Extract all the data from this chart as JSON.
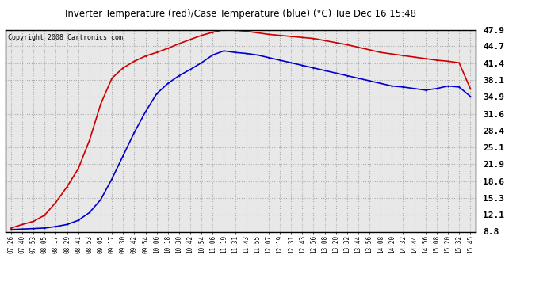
{
  "title": "Inverter Temperature (red)/Case Temperature (blue) (°C) Tue Dec 16 15:48",
  "copyright": "Copyright 2008 Cartronics.com",
  "background_color": "#ffffff",
  "plot_bg_color": "#e8e8e8",
  "grid_color": "#aaaaaa",
  "yticks": [
    8.8,
    12.1,
    15.3,
    18.6,
    21.9,
    25.1,
    28.4,
    31.6,
    34.9,
    38.1,
    41.4,
    44.7,
    47.9
  ],
  "ylim": [
    8.8,
    47.9
  ],
  "xtick_labels": [
    "07:26",
    "07:40",
    "07:53",
    "08:05",
    "08:17",
    "08:29",
    "08:41",
    "08:53",
    "09:05",
    "09:17",
    "09:30",
    "09:42",
    "09:54",
    "10:06",
    "10:18",
    "10:30",
    "10:42",
    "10:54",
    "11:06",
    "11:19",
    "11:31",
    "11:43",
    "11:55",
    "12:07",
    "12:19",
    "12:31",
    "12:43",
    "12:56",
    "13:08",
    "13:20",
    "13:32",
    "13:44",
    "13:56",
    "14:08",
    "14:20",
    "14:32",
    "14:44",
    "14:56",
    "15:08",
    "15:20",
    "15:32",
    "15:45"
  ],
  "red_data": [
    9.5,
    10.2,
    10.8,
    12.0,
    14.5,
    17.5,
    21.0,
    26.5,
    33.5,
    38.5,
    40.5,
    41.8,
    42.8,
    43.5,
    44.3,
    45.2,
    46.0,
    46.8,
    47.4,
    47.9,
    47.8,
    47.6,
    47.3,
    47.0,
    46.8,
    46.6,
    46.4,
    46.2,
    45.8,
    45.4,
    45.0,
    44.5,
    44.0,
    43.5,
    43.2,
    42.9,
    42.6,
    42.3,
    42.0,
    41.8,
    41.5,
    36.5
  ],
  "blue_data": [
    9.2,
    9.3,
    9.4,
    9.5,
    9.8,
    10.2,
    11.0,
    12.5,
    15.0,
    19.0,
    23.5,
    28.0,
    32.0,
    35.5,
    37.5,
    39.0,
    40.2,
    41.5,
    43.0,
    43.8,
    43.5,
    43.3,
    43.0,
    42.5,
    42.0,
    41.5,
    41.0,
    40.5,
    40.0,
    39.5,
    39.0,
    38.5,
    38.0,
    37.5,
    37.0,
    36.8,
    36.5,
    36.2,
    36.5,
    37.0,
    36.8,
    35.0
  ],
  "red_color": "#cc0000",
  "blue_color": "#0000cc",
  "line_width": 1.2
}
